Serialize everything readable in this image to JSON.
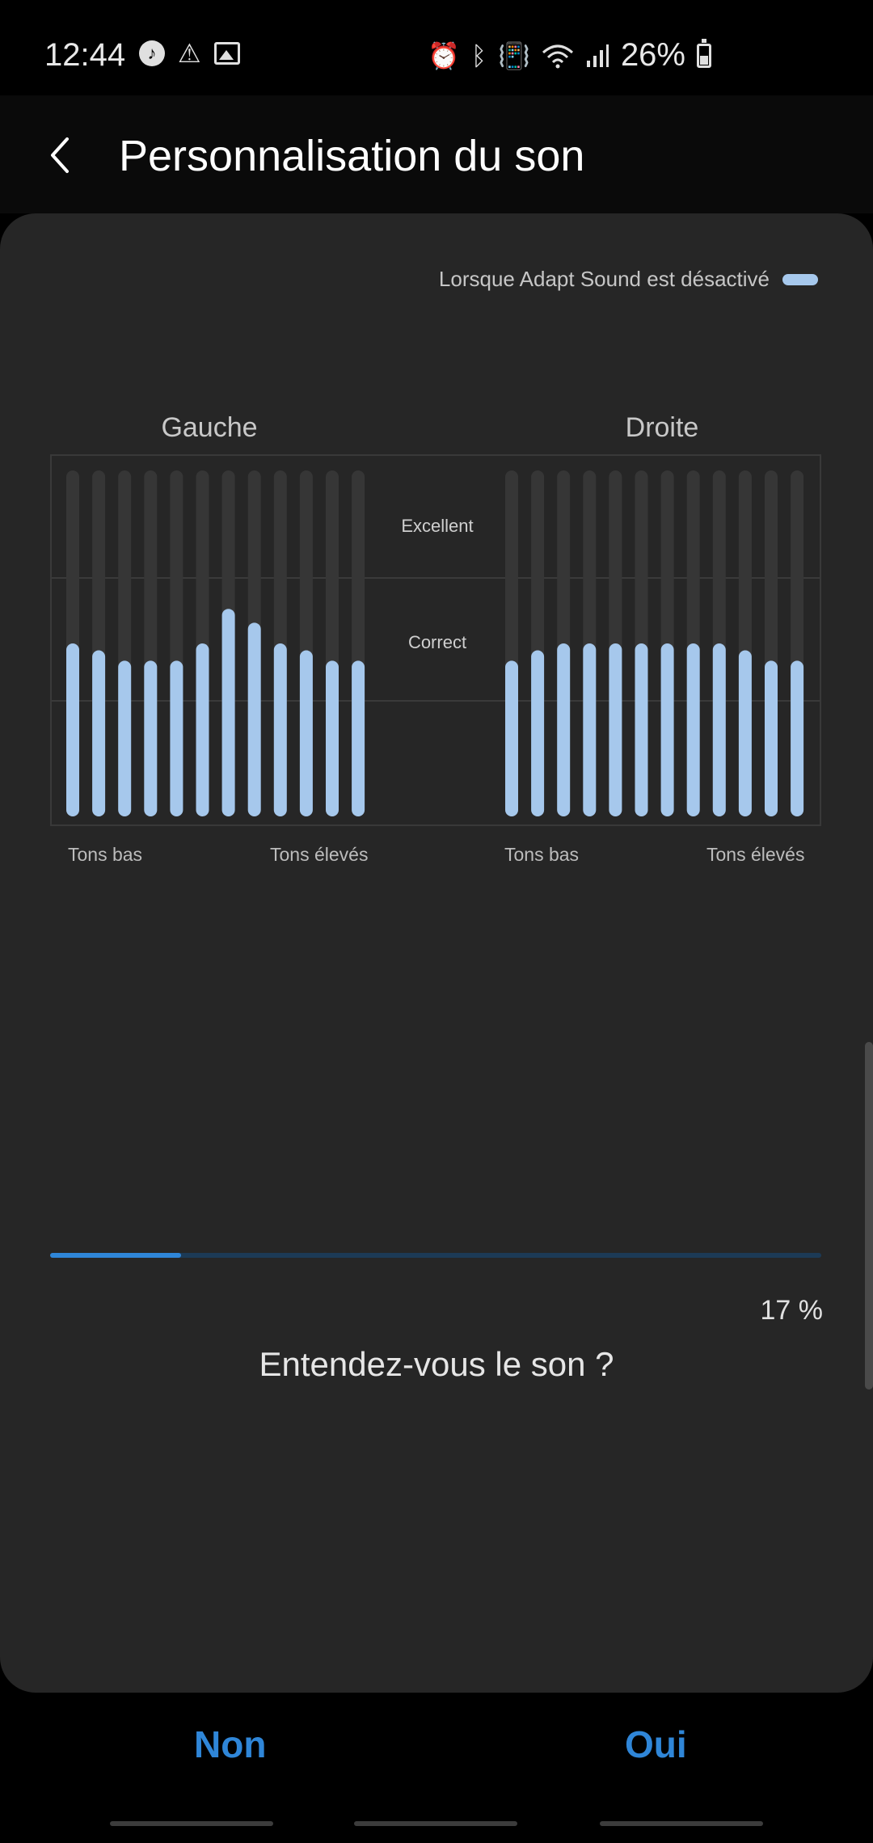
{
  "status_bar": {
    "time": "12:44",
    "battery": "26%",
    "left_icons": [
      "music-note-icon",
      "warning-icon",
      "image-icon"
    ],
    "right_icons": [
      "alarm-icon",
      "bluetooth-icon",
      "vibrate-icon",
      "wifi-icon",
      "signal-icon",
      "battery-icon"
    ]
  },
  "header": {
    "title": "Personnalisation du son"
  },
  "legend": {
    "label": "Lorsque Adapt Sound est désactivé",
    "color": "#a6c8ec"
  },
  "chart_data": {
    "type": "bar",
    "levels": [
      "Excellent",
      "Correct"
    ],
    "charts": [
      {
        "title": "Gauche",
        "low_label": "Tons bas",
        "high_label": "Tons élevés",
        "values": [
          5,
          4.8,
          4.5,
          4.5,
          4.5,
          5,
          6,
          5.6,
          5,
          4.8,
          4.5,
          4.5
        ]
      },
      {
        "title": "Droite",
        "low_label": "Tons bas",
        "high_label": "Tons élevés",
        "values": [
          4.5,
          4.8,
          5,
          5,
          5,
          5,
          5,
          5,
          5,
          4.8,
          4.5,
          4.5
        ]
      }
    ],
    "ylim": [
      0,
      10
    ],
    "bar_color": "#a6c8ec",
    "track_color": "#363636"
  },
  "progress": {
    "label": "17 %",
    "value": 17,
    "color": "#2f86d8"
  },
  "question": "Entendez-vous le son ?",
  "buttons": {
    "no": "Non",
    "yes": "Oui"
  }
}
